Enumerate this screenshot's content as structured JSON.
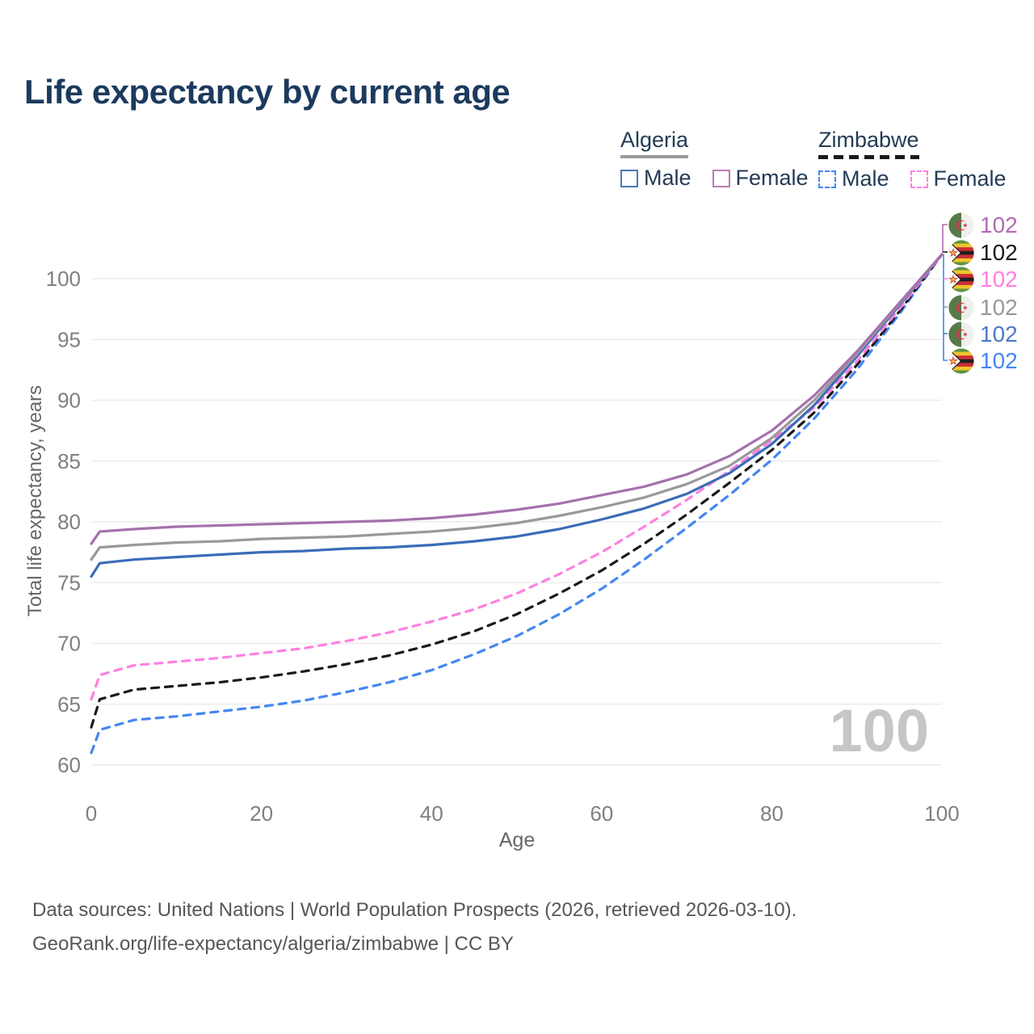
{
  "title": "Life expectancy by current age",
  "legend": {
    "groups": [
      {
        "label": "Algeria",
        "line_style": "solid",
        "underline_color": "#999999",
        "items": [
          {
            "label": "Male",
            "color": "#4a79b8",
            "dashed": false
          },
          {
            "label": "Female",
            "color": "#b87cb8",
            "dashed": false
          }
        ]
      },
      {
        "label": "Zimbabwe",
        "line_style": "dashed",
        "underline_color": "#1a1a1a",
        "items": [
          {
            "label": "Male",
            "color": "#4487f2",
            "dashed": true
          },
          {
            "label": "Female",
            "color": "#ff80e2",
            "dashed": true
          }
        ]
      }
    ]
  },
  "chart_data": {
    "type": "line",
    "title": "Life expectancy by current age",
    "xlabel": "Age",
    "ylabel": "Total life expectancy, years",
    "xlim": [
      0,
      100
    ],
    "ylim": [
      60,
      102
    ],
    "x_ticks": [
      0,
      20,
      40,
      60,
      80,
      100
    ],
    "y_ticks": [
      60,
      65,
      70,
      75,
      80,
      85,
      90,
      95,
      100
    ],
    "grid": "horizontal",
    "legend_position": "top-right",
    "x": [
      0,
      1,
      5,
      10,
      15,
      20,
      25,
      30,
      35,
      40,
      45,
      50,
      55,
      60,
      65,
      70,
      75,
      80,
      85,
      90,
      95,
      100
    ],
    "series": [
      {
        "name": "Algeria Female",
        "country": "algeria",
        "sex": "female",
        "color": "#a571ad",
        "dashed": false,
        "values": [
          78.2,
          79.2,
          79.4,
          79.6,
          79.7,
          79.8,
          79.9,
          80.0,
          80.1,
          80.3,
          80.6,
          81.0,
          81.5,
          82.2,
          82.9,
          83.9,
          85.4,
          87.5,
          90.4,
          94.0,
          98.0,
          102
        ]
      },
      {
        "name": "Algeria Both sexes",
        "country": "algeria",
        "sex": "both",
        "color": "#999999",
        "dashed": false,
        "values": [
          76.9,
          77.9,
          78.1,
          78.3,
          78.4,
          78.6,
          78.7,
          78.8,
          79.0,
          79.2,
          79.5,
          79.9,
          80.5,
          81.2,
          82.0,
          83.1,
          84.6,
          86.9,
          90.0,
          93.8,
          97.9,
          102
        ]
      },
      {
        "name": "Algeria Male",
        "country": "algeria",
        "sex": "male",
        "color": "#3a6cb8",
        "dashed": false,
        "values": [
          75.5,
          76.6,
          76.9,
          77.1,
          77.3,
          77.5,
          77.6,
          77.8,
          77.9,
          78.1,
          78.4,
          78.8,
          79.4,
          80.2,
          81.1,
          82.3,
          84.0,
          86.4,
          89.6,
          93.6,
          97.8,
          102
        ]
      },
      {
        "name": "Zimbabwe Female",
        "country": "zimbabwe",
        "sex": "female",
        "color": "#ff80e2",
        "dashed": true,
        "values": [
          65.4,
          67.4,
          68.2,
          68.5,
          68.8,
          69.2,
          69.6,
          70.2,
          70.9,
          71.8,
          72.8,
          74.1,
          75.7,
          77.5,
          79.6,
          81.8,
          84.2,
          86.7,
          89.4,
          93.2,
          97.5,
          102
        ]
      },
      {
        "name": "Zimbabwe Both sexes",
        "country": "zimbabwe",
        "sex": "both",
        "color": "#1a1a1a",
        "dashed": true,
        "values": [
          63.1,
          65.4,
          66.2,
          66.5,
          66.8,
          67.2,
          67.7,
          68.3,
          69.0,
          69.9,
          71.0,
          72.4,
          74.1,
          76.0,
          78.2,
          80.6,
          83.2,
          85.9,
          89.0,
          92.9,
          97.3,
          102
        ]
      },
      {
        "name": "Zimbabwe Male",
        "country": "zimbabwe",
        "sex": "male",
        "color": "#4487f2",
        "dashed": true,
        "values": [
          61.0,
          62.9,
          63.7,
          64.0,
          64.4,
          64.8,
          65.3,
          66.0,
          66.8,
          67.8,
          69.1,
          70.6,
          72.4,
          74.5,
          76.9,
          79.5,
          82.2,
          85.1,
          88.5,
          92.5,
          97.1,
          102
        ]
      }
    ]
  },
  "end_labels": [
    {
      "country": "algeria",
      "series": "Algeria Female",
      "value": "102",
      "color": "#b06bb3"
    },
    {
      "country": "zimbabwe",
      "series": "Zimbabwe Both sexes",
      "value": "102",
      "color": "#1a1a1a"
    },
    {
      "country": "zimbabwe",
      "series": "Zimbabwe Female",
      "value": "102",
      "color": "#ff80e2"
    },
    {
      "country": "algeria",
      "series": "Algeria Both sexes",
      "value": "102",
      "color": "#999999"
    },
    {
      "country": "algeria",
      "series": "Algeria Male",
      "value": "102",
      "color": "#4a79c9"
    },
    {
      "country": "zimbabwe",
      "series": "Zimbabwe Male",
      "value": "102",
      "color": "#4487f2"
    }
  ],
  "watermark_age": "100",
  "footer": {
    "line1": "Data sources: United Nations | World Population Prospects (2026, retrieved 2026-03-10).",
    "line2": "GeoRank.org/life-expectancy/algeria/zimbabwe | CC BY"
  },
  "colors": {
    "title": "#1c3a5e",
    "axis_text": "#666666",
    "tick_text": "#808080",
    "gridline": "#ececec",
    "watermark": "#c6c6c6",
    "footer_text": "#565656"
  }
}
